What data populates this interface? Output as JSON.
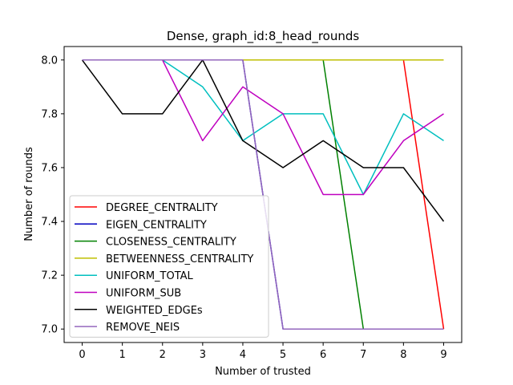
{
  "chart_data": {
    "type": "line",
    "title": "Dense, graph_id:8_head_rounds",
    "xlabel": "Number of trusted",
    "ylabel": "Number of rounds",
    "x": [
      0,
      1,
      2,
      3,
      4,
      5,
      6,
      7,
      8,
      9
    ],
    "xlim": [
      -0.45,
      9.45
    ],
    "ylim": [
      6.95,
      8.05
    ],
    "xticks": [
      "0",
      "1",
      "2",
      "3",
      "4",
      "5",
      "6",
      "7",
      "8",
      "9"
    ],
    "yticks": [
      "7.0",
      "7.2",
      "7.4",
      "7.6",
      "7.8",
      "8.0"
    ],
    "grid": false,
    "legend_position": "lower-left",
    "series": [
      {
        "name": "DEGREE_CENTRALITY",
        "color": "#ff0000",
        "values": [
          8.0,
          8.0,
          8.0,
          8.0,
          8.0,
          8.0,
          8.0,
          8.0,
          8.0,
          7.0
        ]
      },
      {
        "name": "EIGEN_CENTRALITY",
        "color": "#0000bf",
        "values": [
          8.0,
          8.0,
          8.0,
          8.0,
          8.0,
          7.0,
          7.0,
          7.0,
          7.0,
          7.0
        ]
      },
      {
        "name": "CLOSENESS_CENTRALITY",
        "color": "#008000",
        "values": [
          8.0,
          8.0,
          8.0,
          8.0,
          8.0,
          8.0,
          8.0,
          7.0,
          7.0,
          7.0
        ]
      },
      {
        "name": "BETWEENNESS_CENTRALITY",
        "color": "#bfbf00",
        "values": [
          8.0,
          8.0,
          8.0,
          8.0,
          8.0,
          8.0,
          8.0,
          8.0,
          8.0,
          8.0
        ]
      },
      {
        "name": "UNIFORM_TOTAL",
        "color": "#00bfbf",
        "values": [
          8.0,
          8.0,
          8.0,
          7.9,
          7.7,
          7.8,
          7.8,
          7.5,
          7.8,
          7.7
        ]
      },
      {
        "name": "UNIFORM_SUB",
        "color": "#bf00bf",
        "values": [
          8.0,
          8.0,
          8.0,
          7.7,
          7.9,
          7.8,
          7.5,
          7.5,
          7.7,
          7.8
        ]
      },
      {
        "name": "WEIGHTED_EDGEs",
        "color": "#000000",
        "values": [
          8.0,
          7.8,
          7.8,
          8.0,
          7.7,
          7.6,
          7.7,
          7.6,
          7.6,
          7.4
        ]
      },
      {
        "name": "REMOVE_NEIS",
        "color": "#9467bd",
        "values": [
          8.0,
          8.0,
          8.0,
          8.0,
          8.0,
          7.0,
          7.0,
          7.0,
          7.0,
          7.0
        ]
      }
    ]
  }
}
